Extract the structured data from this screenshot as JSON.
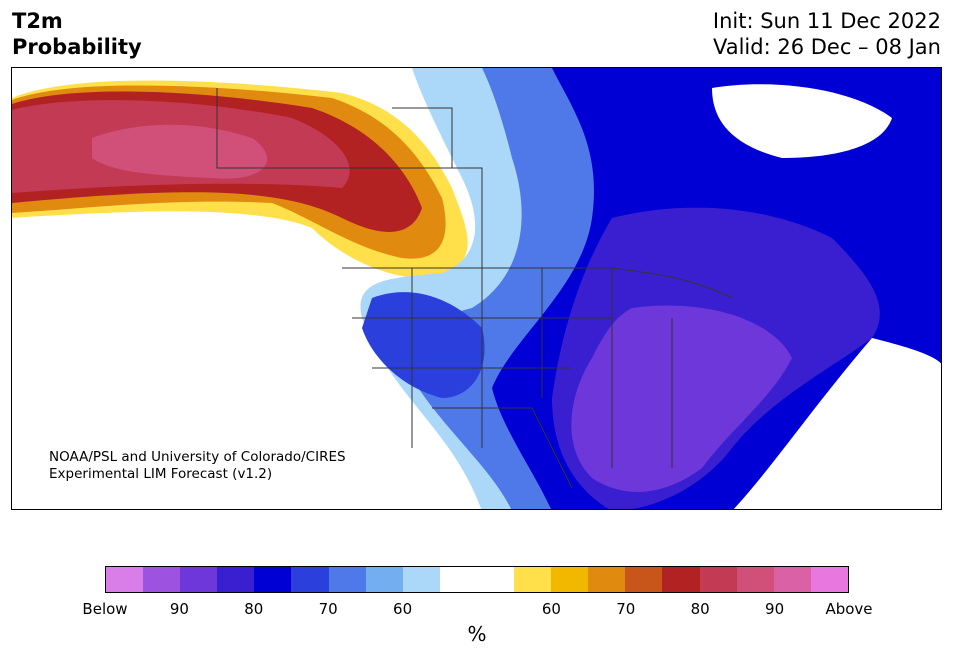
{
  "title": {
    "left_line1": "T2m",
    "left_line2": "Probability",
    "right_line1": "Init: Sun 11 Dec 2022",
    "right_line2": "Valid: 26 Dec – 08 Jan"
  },
  "credit": {
    "line1": "NOAA/PSL and University of Colorado/CIRES",
    "line2": "Experimental LIM Forecast (v1.2)"
  },
  "colorbar": {
    "colors": [
      "#d97ee9",
      "#9e52e0",
      "#6e37d9",
      "#3a1fd0",
      "#0000d4",
      "#2a3fdc",
      "#4f78e8",
      "#73aef0",
      "#abd8f8",
      "#ffffff",
      "#ffffff",
      "#ffe04a",
      "#f2b800",
      "#e08a10",
      "#c8561a",
      "#b22222",
      "#c33a55",
      "#d1507a",
      "#db61a6",
      "#e877e0"
    ],
    "tick_labels": [
      "Below",
      "90",
      "80",
      "70",
      "60",
      "60",
      "70",
      "80",
      "90",
      "Above"
    ],
    "unit": "%"
  },
  "colors": {
    "ocean": "#ffffff",
    "border": "#333333"
  }
}
